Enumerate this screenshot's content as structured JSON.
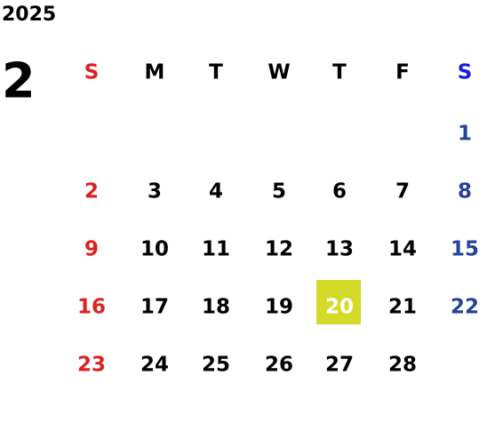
{
  "year": "2025",
  "month": "2",
  "weekdays": [
    "S",
    "M",
    "T",
    "W",
    "T",
    "F",
    "S"
  ],
  "weeks": [
    [
      null,
      null,
      null,
      null,
      null,
      null,
      1
    ],
    [
      2,
      3,
      4,
      5,
      6,
      7,
      8
    ],
    [
      9,
      10,
      11,
      12,
      13,
      14,
      15
    ],
    [
      16,
      17,
      18,
      19,
      20,
      21,
      22
    ],
    [
      23,
      24,
      25,
      26,
      27,
      28,
      null
    ]
  ],
  "colors": {
    "sunday": "#dd2222",
    "saturday_header": "#1a1ad8",
    "saturday": "#23449a",
    "weekday": "#000000"
  },
  "highlight": {
    "value": 20,
    "color": "#d3da27",
    "text_color": "#ffffff"
  }
}
